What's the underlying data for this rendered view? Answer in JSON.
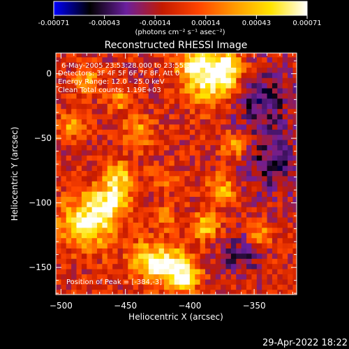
{
  "colorbar": {
    "ticks": [
      "-0.00071",
      "-0.00043",
      "-0.00014",
      "0.00014",
      "0.00043",
      "0.00071"
    ],
    "units_label": "(photons cm⁻² s⁻¹ asec⁻²)",
    "palette": [
      "#0000ff",
      "#000000",
      "#6a1f9e",
      "#c41a00",
      "#ff4400",
      "#ff9a00",
      "#ffe400",
      "#ffffff"
    ]
  },
  "chart_data": {
    "type": "heatmap",
    "title": "Reconstructed RHESSI Image",
    "xlabel": "Heliocentric X (arcsec)",
    "ylabel": "Heliocentric Y (arcsec)",
    "xlim": [
      -504,
      -317
    ],
    "ylim": [
      -171,
      16
    ],
    "x_ticks": [
      {
        "value": -500,
        "label": "−500"
      },
      {
        "value": -450,
        "label": "−450"
      },
      {
        "value": -400,
        "label": "−400"
      },
      {
        "value": -350,
        "label": "−350"
      }
    ],
    "y_ticks": [
      {
        "value": 0,
        "label": "0"
      },
      {
        "value": -50,
        "label": "−50"
      },
      {
        "value": -100,
        "label": "−100"
      },
      {
        "value": -150,
        "label": "−150"
      }
    ],
    "vmin": -0.00071,
    "vmax": 0.00071,
    "bright_regions": [
      {
        "x": -383,
        "y": -5,
        "s": 14,
        "v": 0.00066
      },
      {
        "x": -372,
        "y": 5,
        "s": 9,
        "v": 0.00055
      },
      {
        "x": -398,
        "y": 8,
        "s": 8,
        "v": 0.0005
      },
      {
        "x": -480,
        "y": -115,
        "s": 14,
        "v": 0.00069
      },
      {
        "x": -462,
        "y": -100,
        "s": 10,
        "v": 0.00055
      },
      {
        "x": -455,
        "y": -80,
        "s": 9,
        "v": 0.0005
      },
      {
        "x": -430,
        "y": -145,
        "s": 12,
        "v": 0.00052
      },
      {
        "x": -412,
        "y": -150,
        "s": 10,
        "v": 0.0006
      },
      {
        "x": -402,
        "y": -158,
        "s": 7,
        "v": 0.00048
      },
      {
        "x": -388,
        "y": -118,
        "s": 8,
        "v": 0.00045
      },
      {
        "x": -375,
        "y": -90,
        "s": 8,
        "v": 0.00045
      },
      {
        "x": -365,
        "y": -55,
        "s": 7,
        "v": 0.0004
      },
      {
        "x": -440,
        "y": -45,
        "s": 8,
        "v": 0.00042
      },
      {
        "x": -490,
        "y": -40,
        "s": 7,
        "v": 0.0004
      },
      {
        "x": -480,
        "y": -5,
        "s": 7,
        "v": 0.0004
      },
      {
        "x": -455,
        "y": -20,
        "s": 6,
        "v": 0.00035
      },
      {
        "x": -345,
        "y": -125,
        "s": 7,
        "v": 0.00035
      },
      {
        "x": -420,
        "y": -80,
        "s": 6,
        "v": 0.00032
      },
      {
        "x": -420,
        "y": -110,
        "s": 6,
        "v": 0.0003
      }
    ],
    "dim_regions": [
      {
        "x": -345,
        "y": -20,
        "s": 18,
        "v": -0.00035
      },
      {
        "x": -335,
        "y": -70,
        "s": 16,
        "v": -0.00035
      },
      {
        "x": -360,
        "y": -140,
        "s": 12,
        "v": -0.0003
      }
    ]
  },
  "annotations": {
    "time_range": "6-May-2005 23:53:28.000 to 23:55:38.000",
    "detectors": "Detectors: 3F 4F 5F 6F 7F 8F, Att 0",
    "energy_range": "Energy Range: 12.0 - 25.0 keV",
    "clean_counts": "Clean     Total counts: 1.19E+03",
    "peak_position": "Position of Peak = [-384,-3]"
  },
  "footer": {
    "datestamp": "29-Apr-2022 18:22"
  }
}
